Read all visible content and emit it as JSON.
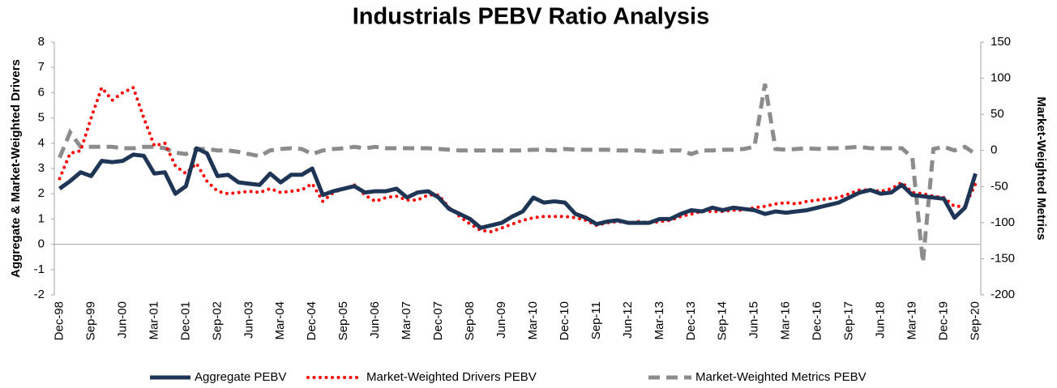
{
  "chart_data": {
    "type": "line",
    "title": "Industrials PEBV Ratio Analysis",
    "ylabel": "Aggregate & Market-Weighted Drivers",
    "y2label": "Market-Weighted Metrics",
    "categories": [
      "Dec-98",
      null,
      null,
      "Sep-99",
      null,
      null,
      "Jun-00",
      null,
      null,
      "Mar-01",
      null,
      null,
      "Dec-01",
      null,
      null,
      "Sep-02",
      null,
      null,
      "Jun-03",
      null,
      null,
      "Mar-04",
      null,
      null,
      "Dec-04",
      null,
      null,
      "Sep-05",
      null,
      null,
      "Jun-06",
      null,
      null,
      "Mar-07",
      null,
      null,
      "Dec-07",
      null,
      null,
      "Sep-08",
      null,
      null,
      "Jun-09",
      null,
      null,
      "Mar-10",
      null,
      null,
      "Dec-10",
      null,
      null,
      "Sep-11",
      null,
      null,
      "Jun-12",
      null,
      null,
      "Mar-13",
      null,
      null,
      "Dec-13",
      null,
      null,
      "Sep-14",
      null,
      null,
      "Jun-15",
      null,
      null,
      "Mar-16",
      null,
      null,
      "Dec-16",
      null,
      null,
      "Sep-17",
      null,
      null,
      "Jun-18",
      null,
      null,
      "Mar-19",
      null,
      null,
      "Dec-19",
      null,
      null,
      "Sep-20"
    ],
    "series": [
      {
        "name": "Aggregate PEBV",
        "color": "#1f3556",
        "style": "solid",
        "values": [
          2.2,
          2.5,
          2.85,
          2.7,
          3.3,
          3.25,
          3.3,
          3.55,
          3.5,
          2.8,
          2.85,
          2.0,
          2.3,
          3.8,
          3.6,
          2.7,
          2.75,
          2.45,
          2.4,
          2.35,
          2.8,
          2.45,
          2.75,
          2.75,
          3.0,
          1.95,
          2.1,
          2.2,
          2.3,
          2.05,
          2.1,
          2.1,
          2.2,
          1.85,
          2.05,
          2.1,
          1.85,
          1.4,
          1.2,
          1.0,
          0.65,
          0.75,
          0.85,
          1.1,
          1.3,
          1.85,
          1.65,
          1.7,
          1.65,
          1.2,
          1.05,
          0.8,
          0.9,
          0.95,
          0.85,
          0.85,
          0.85,
          1.0,
          1.0,
          1.2,
          1.35,
          1.3,
          1.45,
          1.35,
          1.45,
          1.4,
          1.35,
          1.2,
          1.3,
          1.25,
          1.3,
          1.35,
          1.45,
          1.55,
          1.65,
          1.85,
          2.05,
          2.15,
          2.0,
          2.05,
          2.35,
          1.95,
          1.9,
          1.85,
          1.8,
          1.05,
          1.45,
          2.8
        ]
      },
      {
        "name": "Market-Weighted Drivers PEBV",
        "color": "#ff0000",
        "style": "dotted",
        "values": [
          2.6,
          3.6,
          3.7,
          5.0,
          6.2,
          5.7,
          6.0,
          6.2,
          5.0,
          3.9,
          4.0,
          3.1,
          2.8,
          3.2,
          2.5,
          2.1,
          2.0,
          2.05,
          2.1,
          2.05,
          2.2,
          2.05,
          2.1,
          2.15,
          2.4,
          1.7,
          2.05,
          2.2,
          2.35,
          1.95,
          1.7,
          1.85,
          1.9,
          1.75,
          1.75,
          1.95,
          1.95,
          1.45,
          1.1,
          0.8,
          0.55,
          0.5,
          0.65,
          0.8,
          0.95,
          1.05,
          1.1,
          1.1,
          1.1,
          1.05,
          0.95,
          0.75,
          0.85,
          0.9,
          0.85,
          0.9,
          0.85,
          0.9,
          0.95,
          1.1,
          1.2,
          1.3,
          1.3,
          1.3,
          1.35,
          1.35,
          1.45,
          1.5,
          1.6,
          1.65,
          1.6,
          1.7,
          1.75,
          1.8,
          1.85,
          2.0,
          2.15,
          2.15,
          2.1,
          2.2,
          2.45,
          2.05,
          2.0,
          1.9,
          1.85,
          1.5,
          1.5,
          2.4
        ]
      },
      {
        "name": "Market-Weighted Metrics PEBV",
        "color": "#8c8c8c",
        "style": "dashed",
        "axis": "y2",
        "values": [
          -10,
          25,
          5,
          5,
          5,
          5,
          3,
          3,
          5,
          5,
          3,
          -3,
          -5,
          2,
          2,
          0,
          0,
          -2,
          -5,
          -8,
          0,
          2,
          3,
          2,
          -5,
          0,
          2,
          3,
          5,
          3,
          5,
          3,
          3,
          3,
          3,
          3,
          2,
          1,
          0,
          0,
          0,
          0,
          0,
          0,
          0,
          1,
          1,
          0,
          2,
          1,
          1,
          1,
          1,
          0,
          0,
          0,
          -1,
          -2,
          0,
          0,
          -5,
          0,
          0,
          1,
          1,
          2,
          5,
          92,
          2,
          1,
          2,
          3,
          2,
          3,
          3,
          4,
          5,
          3,
          3,
          3,
          3,
          -10,
          -155,
          2,
          5,
          0,
          5,
          -5
        ]
      }
    ],
    "ylim": [
      -2,
      8
    ],
    "yticks": [
      -2,
      -1,
      0,
      1,
      2,
      3,
      4,
      5,
      6,
      7,
      8
    ],
    "y2lim": [
      -200,
      150
    ],
    "y2ticks": [
      -200,
      -150,
      -100,
      -50,
      0,
      50,
      100,
      150
    ],
    "grid": false,
    "legend": "bottom"
  }
}
